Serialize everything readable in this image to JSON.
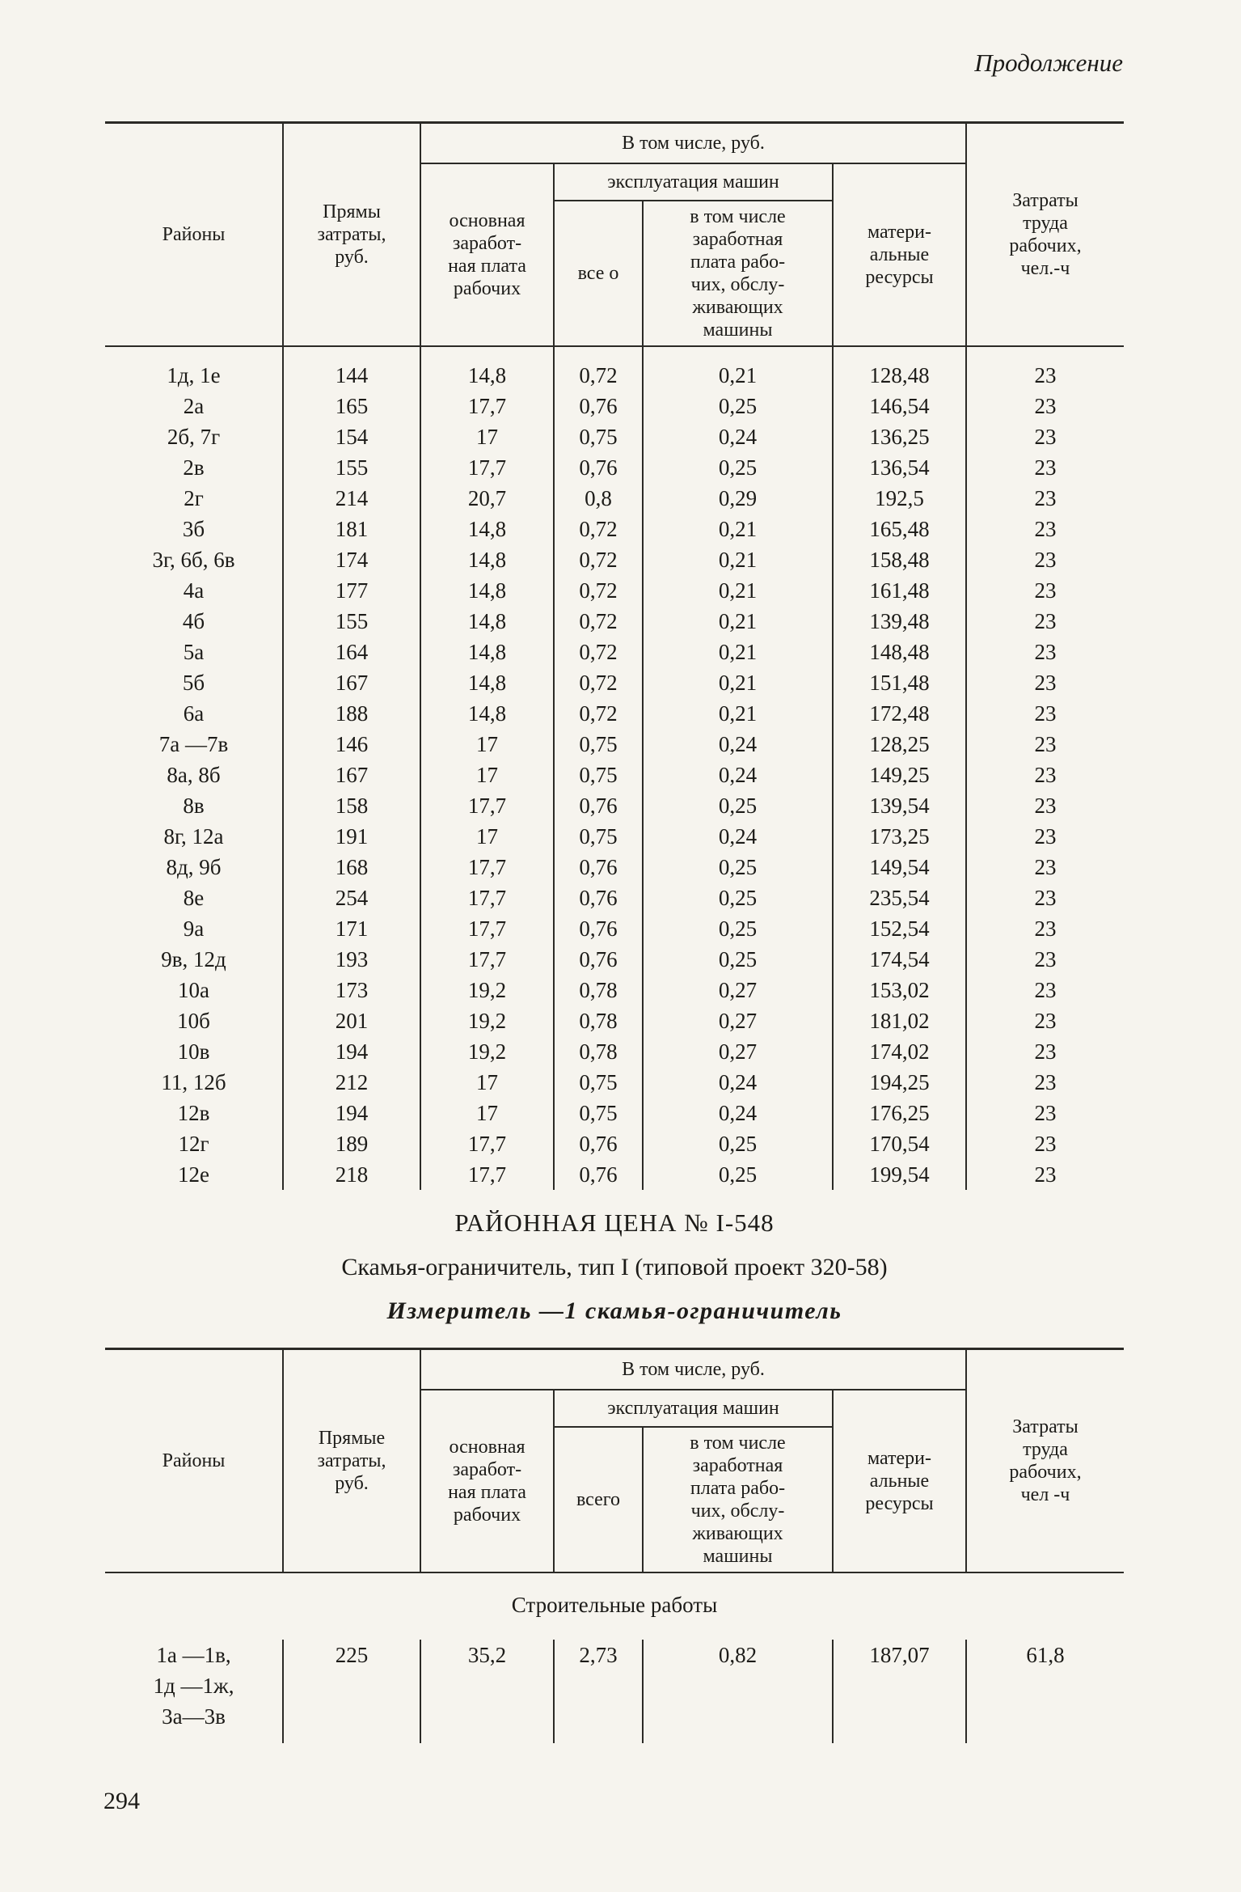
{
  "page": {
    "continuation": "Продолжение",
    "number": "294"
  },
  "table1": {
    "header": {
      "districts": "Районы",
      "direct_costs": "Прямы\nзатраты,\nруб.",
      "including": "В том числе, руб.",
      "basic_wage": "основная\nзаработ-\nная плата\nрабочих",
      "machines": "эксплуатация машин",
      "machines_total": "все о",
      "machines_wages": "в том числе\nзаработная\nплата рабо-\nчих, обслу-\nживающих\nмашины",
      "materials": "матери-\nальные\nресурсы",
      "labor": "Затраты\nтруда\nрабочих,\nчел.-ч"
    },
    "rows": [
      [
        "1д, 1е",
        "144",
        "14,8",
        "0,72",
        "0,21",
        "128,48",
        "23"
      ],
      [
        "2а",
        "165",
        "17,7",
        "0,76",
        "0,25",
        "146,54",
        "23"
      ],
      [
        "2б, 7г",
        "154",
        "17",
        "0,75",
        "0,24",
        "136,25",
        "23"
      ],
      [
        "2в",
        "155",
        "17,7",
        "0,76",
        "0,25",
        "136,54",
        "23"
      ],
      [
        "2г",
        "214",
        "20,7",
        "0,8",
        "0,29",
        "192,5",
        "23"
      ],
      [
        "3б",
        "181",
        "14,8",
        "0,72",
        "0,21",
        "165,48",
        "23"
      ],
      [
        "3г, 6б, 6в",
        "174",
        "14,8",
        "0,72",
        "0,21",
        "158,48",
        "23"
      ],
      [
        "4а",
        "177",
        "14,8",
        "0,72",
        "0,21",
        "161,48",
        "23"
      ],
      [
        "4б",
        "155",
        "14,8",
        "0,72",
        "0,21",
        "139,48",
        "23"
      ],
      [
        "5а",
        "164",
        "14,8",
        "0,72",
        "0,21",
        "148,48",
        "23"
      ],
      [
        "5б",
        "167",
        "14,8",
        "0,72",
        "0,21",
        "151,48",
        "23"
      ],
      [
        "6а",
        "188",
        "14,8",
        "0,72",
        "0,21",
        "172,48",
        "23"
      ],
      [
        "7а —7в",
        "146",
        "17",
        "0,75",
        "0,24",
        "128,25",
        "23"
      ],
      [
        "8а, 8б",
        "167",
        "17",
        "0,75",
        "0,24",
        "149,25",
        "23"
      ],
      [
        "8в",
        "158",
        "17,7",
        "0,76",
        "0,25",
        "139,54",
        "23"
      ],
      [
        "8г, 12а",
        "191",
        "17",
        "0,75",
        "0,24",
        "173,25",
        "23"
      ],
      [
        "8д, 9б",
        "168",
        "17,7",
        "0,76",
        "0,25",
        "149,54",
        "23"
      ],
      [
        "8е",
        "254",
        "17,7",
        "0,76",
        "0,25",
        "235,54",
        "23"
      ],
      [
        "9а",
        "171",
        "17,7",
        "0,76",
        "0,25",
        "152,54",
        "23"
      ],
      [
        "9в, 12д",
        "193",
        "17,7",
        "0,76",
        "0,25",
        "174,54",
        "23"
      ],
      [
        "10а",
        "173",
        "19,2",
        "0,78",
        "0,27",
        "153,02",
        "23"
      ],
      [
        "10б",
        "201",
        "19,2",
        "0,78",
        "0,27",
        "181,02",
        "23"
      ],
      [
        "10в",
        "194",
        "19,2",
        "0,78",
        "0,27",
        "174,02",
        "23"
      ],
      [
        "11, 12б",
        "212",
        "17",
        "0,75",
        "0,24",
        "194,25",
        "23"
      ],
      [
        "12в",
        "194",
        "17",
        "0,75",
        "0,24",
        "176,25",
        "23"
      ],
      [
        "12г",
        "189",
        "17,7",
        "0,76",
        "0,25",
        "170,54",
        "23"
      ],
      [
        "12е",
        "218",
        "17,7",
        "0,76",
        "0,25",
        "199,54",
        "23"
      ]
    ]
  },
  "section": {
    "title": "РАЙОННАЯ ЦЕНА № I-548",
    "subtitle": "Скамья-ограничитель, тип I (типовой проект 320-58)",
    "measure": "Измеритель —1 скамья-ограничитель"
  },
  "table2": {
    "header": {
      "districts": "Районы",
      "direct_costs": "Прямые\nзатраты,\nруб.",
      "including": "В том числе, руб.",
      "basic_wage": "основная\nзаработ-\nная плата\nрабочих",
      "machines": "эксплуатация машин",
      "machines_total": "всего",
      "machines_wages": "в том числе\nзаработная\nплата рабо-\nчих, обслу-\nживающих\nмашины",
      "materials": "матери-\nальные\nресурсы",
      "labor": "Затраты\nтруда\nрабочих,\nчел -ч"
    },
    "works_heading": "Строительные работы",
    "rows": [
      [
        "1а —1в,\n1д —1ж,\n3а—3в",
        "225",
        "35,2",
        "2,73",
        "0,82",
        "187,07",
        "61,8"
      ]
    ]
  }
}
